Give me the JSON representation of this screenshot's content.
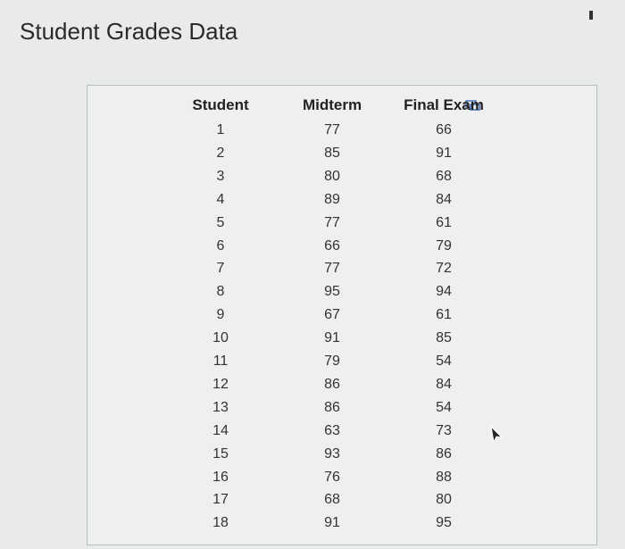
{
  "header": {
    "title": "Student Grades Data"
  },
  "table": {
    "columns": [
      "Student",
      "Midterm",
      "Final Exam"
    ],
    "rows": [
      [
        1,
        77,
        66
      ],
      [
        2,
        85,
        91
      ],
      [
        3,
        80,
        68
      ],
      [
        4,
        89,
        84
      ],
      [
        5,
        77,
        61
      ],
      [
        6,
        66,
        79
      ],
      [
        7,
        77,
        72
      ],
      [
        8,
        95,
        94
      ],
      [
        9,
        67,
        61
      ],
      [
        10,
        91,
        85
      ],
      [
        11,
        79,
        54
      ],
      [
        12,
        86,
        84
      ],
      [
        13,
        86,
        54
      ],
      [
        14,
        63,
        73
      ],
      [
        15,
        93,
        86
      ],
      [
        16,
        76,
        88
      ],
      [
        17,
        68,
        80
      ],
      [
        18,
        91,
        95
      ]
    ]
  }
}
